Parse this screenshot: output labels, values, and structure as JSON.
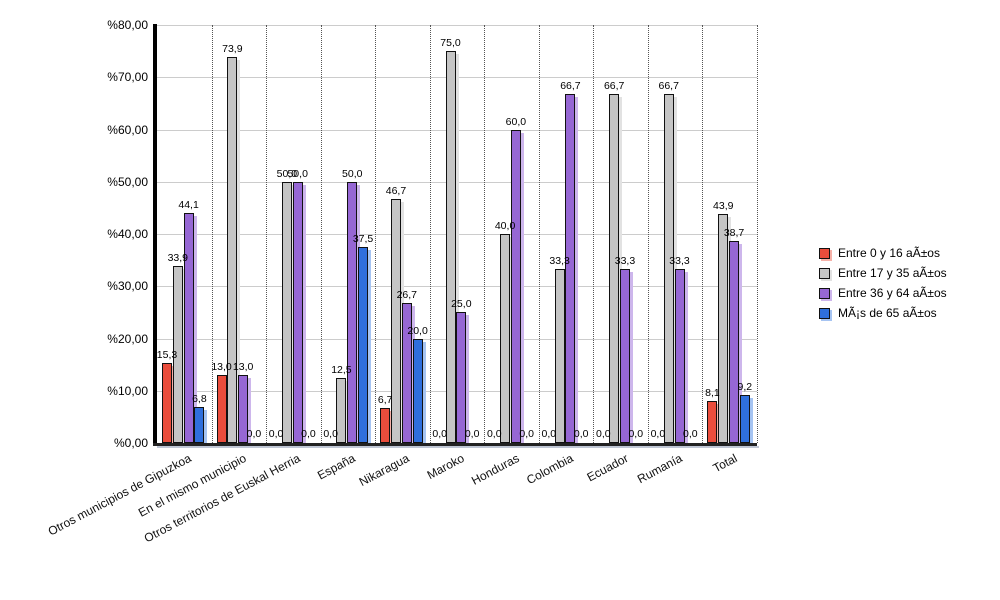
{
  "chart_data": {
    "type": "bar",
    "title": "",
    "categories": [
      "Otros municipios de Gipuzkoa",
      "En el mismo municipio",
      "Otros territorios de Euskal Herria",
      "España",
      "Nikaragua",
      "Maroko",
      "Honduras",
      "Colombia",
      "Ecuador",
      "Rumanía",
      "Total"
    ],
    "series": [
      {
        "name": "Entre 0 y 16 aÃ±os",
        "color": "#ea4d3c",
        "shadow": "#f6b1a8",
        "values": [
          15.3,
          13.0,
          0.0,
          0.0,
          6.7,
          0.0,
          0.0,
          0.0,
          0.0,
          0.0,
          8.1
        ]
      },
      {
        "name": "Entre 17 y 35 aÃ±os",
        "color": "#c5c5c5",
        "shadow": "#e2e2e2",
        "values": [
          33.9,
          73.9,
          50.0,
          12.5,
          46.7,
          75.0,
          40.0,
          33.3,
          66.7,
          66.7,
          43.9
        ]
      },
      {
        "name": "Entre 36 y 64 aÃ±os",
        "color": "#9667d4",
        "shadow": "#cdb6ec",
        "values": [
          44.1,
          13.0,
          50.0,
          50.0,
          26.7,
          25.0,
          60.0,
          66.7,
          33.3,
          33.3,
          38.7
        ]
      },
      {
        "name": "MÃ¡s de 65 aÃ±os",
        "color": "#2f6fdc",
        "shadow": "#a6c4f2",
        "values": [
          6.8,
          0.0,
          0.0,
          37.5,
          20.0,
          0.0,
          0.0,
          0.0,
          0.0,
          0.0,
          9.2
        ]
      }
    ],
    "ylim": [
      0,
      80
    ],
    "ytick_step": 10,
    "ytick_labels": [
      "%80,00",
      "%70,00",
      "%60,00",
      "%50,00",
      "%40,00",
      "%30,00",
      "%20,00",
      "%10,00",
      "%0,00"
    ],
    "value_label_decimal_separator": ",",
    "grid": true,
    "legend_position": "right",
    "colors": {
      "grid": "#cccccc",
      "axis": "#000000",
      "category_separator": "#555555",
      "background": "#ffffff",
      "label_text": "#000000"
    }
  }
}
